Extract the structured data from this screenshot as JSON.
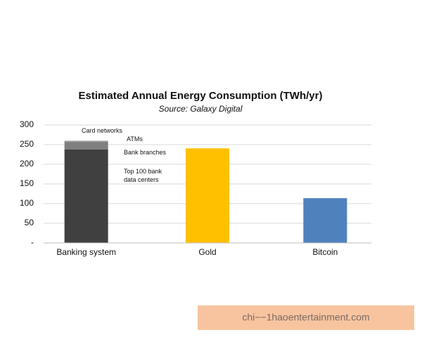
{
  "chart_data": {
    "type": "bar",
    "stacked": true,
    "title": "Estimated Annual Energy Consumption (TWh/yr)",
    "subtitle": "Source: Galaxy Digital",
    "categories": [
      "Banking system",
      "Gold",
      "Bitcoin"
    ],
    "series": [
      {
        "name": "Top 100 bank data centers",
        "color": "#404040",
        "values": [
          238,
          null,
          null
        ]
      },
      {
        "name": "Bank branches",
        "color": "#7f7f7f",
        "values": [
          19,
          null,
          null
        ]
      },
      {
        "name": "ATMs",
        "color": "#a0a0a0",
        "values": [
          2.2,
          null,
          null
        ]
      },
      {
        "name": "Card networks",
        "color": "#5a5a5a",
        "values": [
          0.5,
          null,
          null
        ]
      },
      {
        "color": "#ffc000",
        "values": [
          null,
          240.6,
          null
        ]
      },
      {
        "color": "#4f81bd",
        "values": [
          null,
          null,
          113.9
        ]
      }
    ],
    "ylim": [
      0,
      300
    ],
    "yticks": [
      {
        "value": 0,
        "label": "-"
      },
      50,
      100,
      150,
      200,
      250,
      300
    ],
    "grid": true
  },
  "watermark": "chi−−1haoentertainment.com"
}
